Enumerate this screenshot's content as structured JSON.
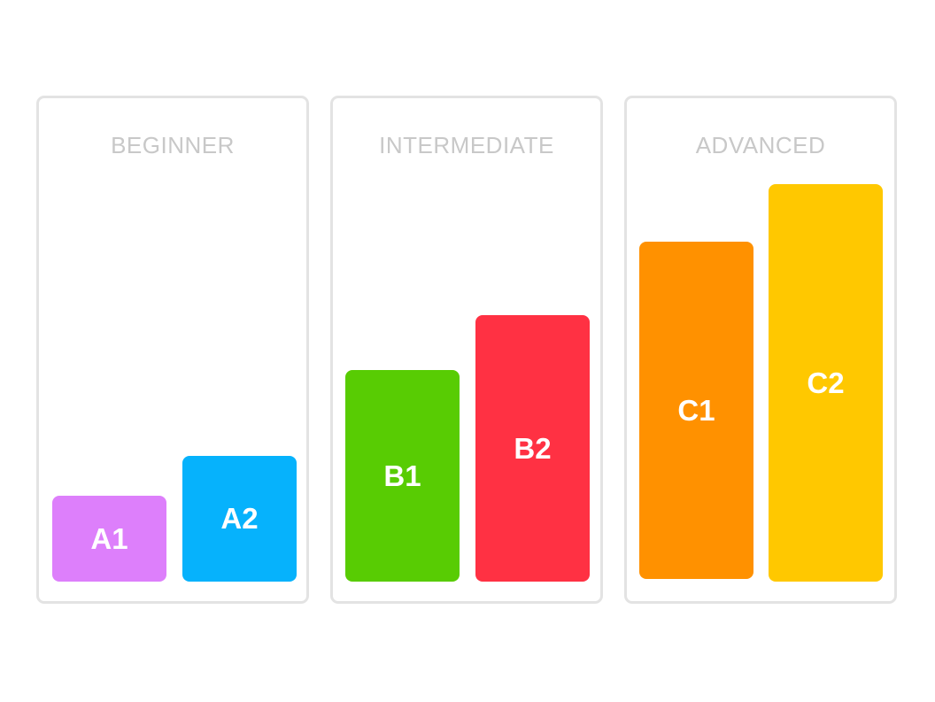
{
  "levels": [
    {
      "title": "BEGINNER",
      "bars": [
        {
          "label": "A1",
          "color": "#dd7ffb",
          "level": 0.17
        },
        {
          "label": "A2",
          "color": "#06b2fc",
          "level": 0.25
        }
      ]
    },
    {
      "title": "INTERMEDIATE",
      "bars": [
        {
          "label": "B1",
          "color": "#58cc03",
          "level": 0.42
        },
        {
          "label": "B2",
          "color": "#ff3143",
          "level": 0.53
        }
      ]
    },
    {
      "title": "ADVANCED",
      "bars": [
        {
          "label": "C1",
          "color": "#ff9100",
          "level": 0.67
        },
        {
          "label": "C2",
          "color": "#ffc800",
          "level": 0.79
        }
      ]
    }
  ]
}
